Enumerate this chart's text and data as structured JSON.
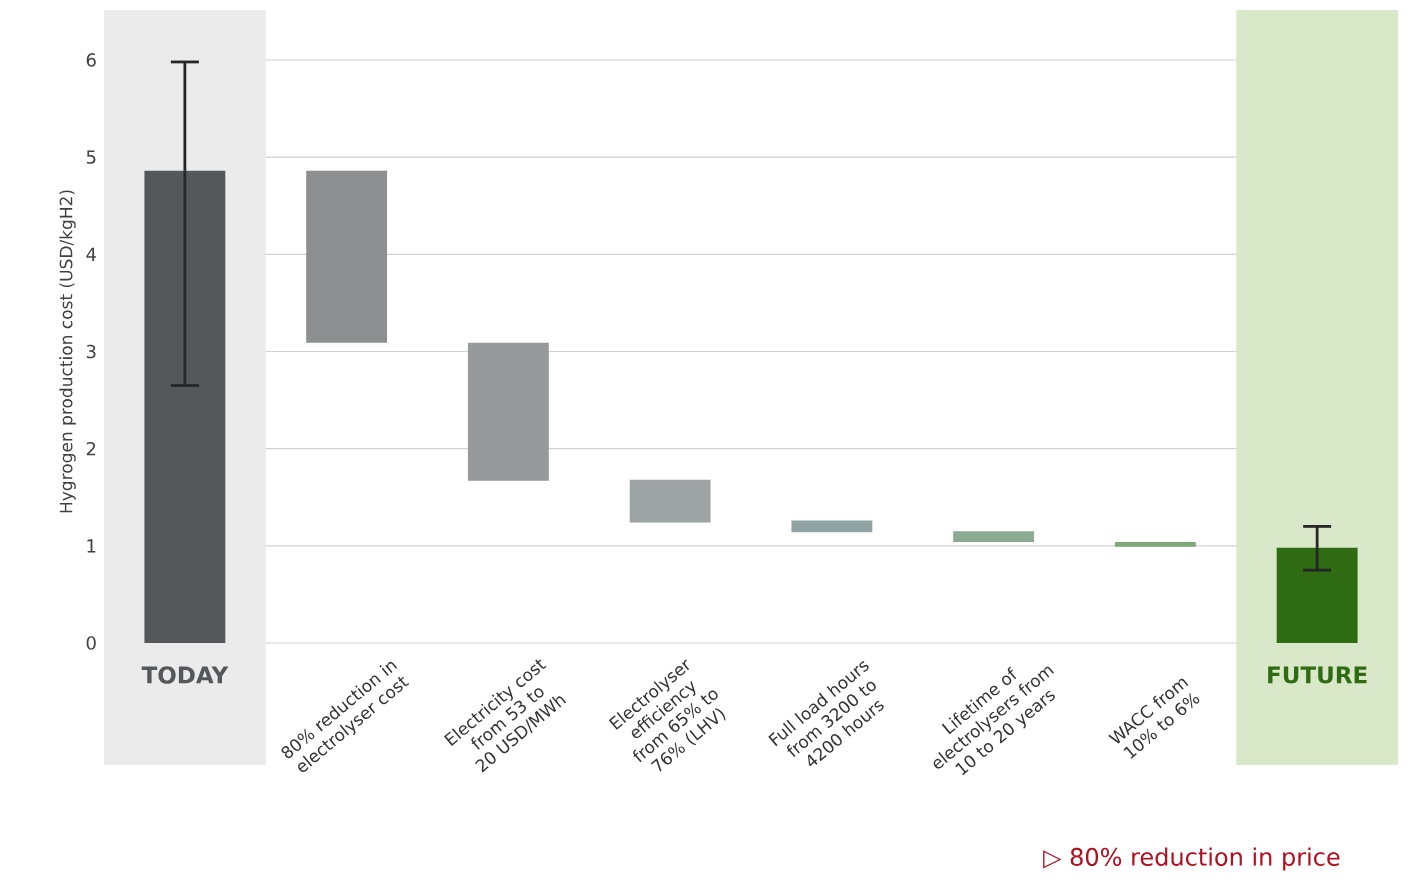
{
  "chart_data": {
    "type": "bar",
    "ylabel": "Hygrogen production cost (USD/kgH2)",
    "categories": [
      "TODAY",
      "80% reduction in electrolyser cost",
      "Electricity cost from 53 to 20 USD/MWh",
      "Electrolyser efficiency from 65% to 76% (LHV)",
      "Full load hours from 3200 to 4200 hours",
      "Lifetime of electrolysers from 10 to 20 years",
      "WACC from 10% to 6%",
      "FUTURE"
    ],
    "values": [
      4.86,
      1.77,
      1.42,
      0.44,
      0.12,
      0.11,
      0.05,
      0.98
    ],
    "base": [
      0,
      3.09,
      1.67,
      1.24,
      1.14,
      1.04,
      0.99,
      0
    ],
    "colors": [
      "#55585a",
      "#8e8f91",
      "#98999b",
      "#9ea4a4",
      "#8fa3a3",
      "#8aaa92",
      "#7da877",
      "#2e6b12"
    ],
    "errors": [
      [
        2.65,
        5.98
      ],
      null,
      null,
      null,
      null,
      null,
      null,
      [
        0.75,
        1.2
      ]
    ],
    "ylim": [
      0,
      6
    ],
    "yticks": [
      0,
      1,
      2,
      3,
      4,
      5,
      6
    ],
    "grid": "y",
    "bands": [
      {
        "axis": "x",
        "from": "TODAY",
        "to": "TODAY",
        "color": "#ebebeb"
      },
      {
        "axis": "x",
        "from": "FUTURE",
        "to": "FUTURE",
        "color": "#d9e8c9"
      }
    ],
    "annotations": [
      "▷ 80% reduction in price"
    ]
  }
}
